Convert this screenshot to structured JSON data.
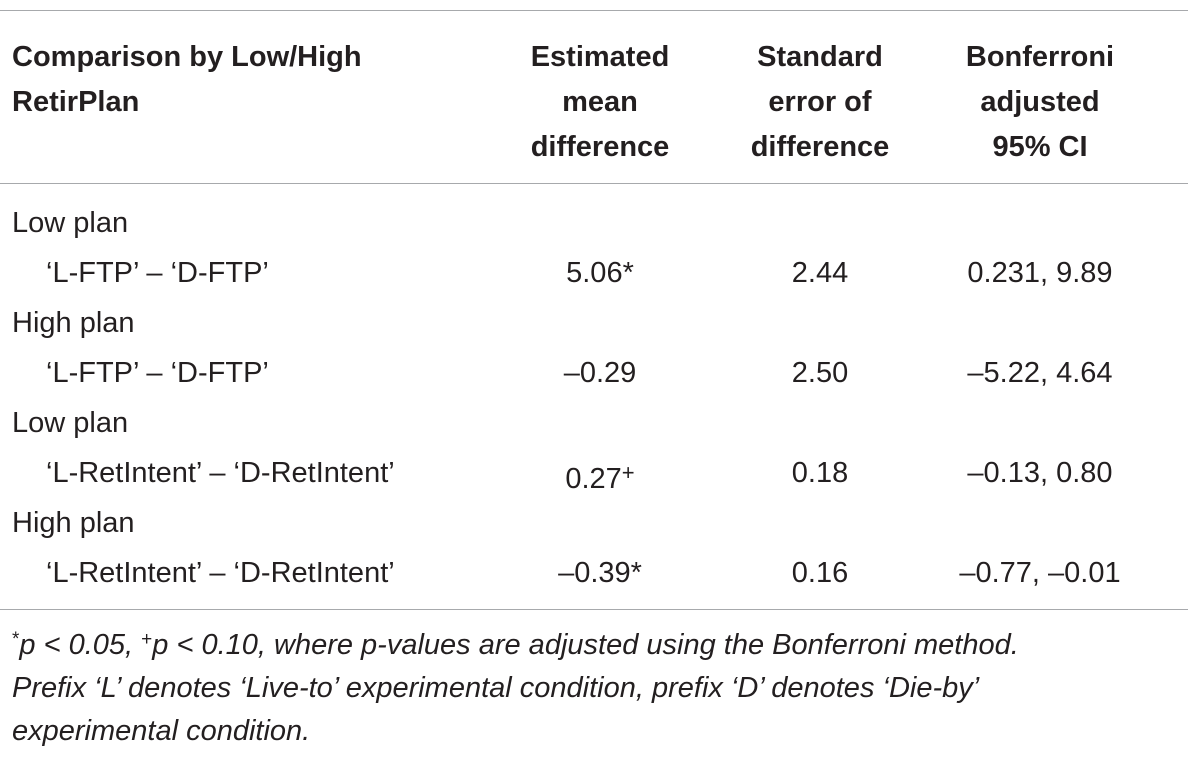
{
  "table": {
    "headers": [
      [
        "Comparison by Low/High",
        "RetirPlan"
      ],
      [
        "Estimated",
        "mean",
        "difference"
      ],
      [
        "Standard",
        "error of",
        "difference"
      ],
      [
        "Bonferroni",
        "adjusted",
        "95% CI"
      ]
    ],
    "rows": [
      {
        "group": "Low plan",
        "comparison": "‘L-FTP’ – ‘D-FTP’",
        "estimate": "5.06",
        "estimate_mark": "*",
        "se": "2.44",
        "ci": "0.231, 9.89"
      },
      {
        "group": "High plan",
        "comparison": "‘L-FTP’ – ‘D-FTP’",
        "estimate": "–0.29",
        "estimate_mark": "",
        "se": "2.50",
        "ci": "–5.22, 4.64"
      },
      {
        "group": "Low plan",
        "comparison": "‘L-RetIntent’ – ‘D-RetIntent’",
        "estimate": "0.27",
        "estimate_mark": "+",
        "se": "0.18",
        "ci": "–0.13, 0.80"
      },
      {
        "group": "High plan",
        "comparison": "‘L-RetIntent’ – ‘D-RetIntent’",
        "estimate": "–0.39",
        "estimate_mark": "*",
        "se": "0.16",
        "ci": "–0.77, –0.01"
      }
    ]
  },
  "footnote": {
    "sym1": "*",
    "text1": "p < 0.05, ",
    "sym2": "+",
    "text2": "p < 0.10, where p-values are adjusted using the Bonferroni method.",
    "line2": "Prefix ‘L’ denotes ‘Live-to’ experimental condition, prefix ‘D’ denotes ‘Die-by’",
    "line3": "experimental condition."
  }
}
